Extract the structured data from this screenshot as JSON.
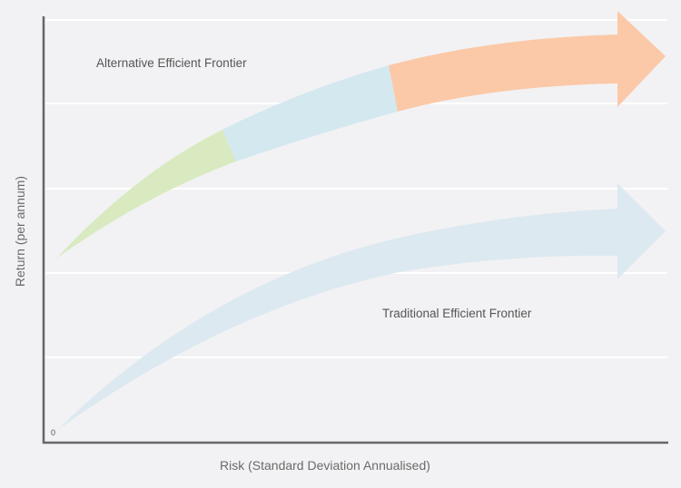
{
  "chart_data": {
    "type": "diagram",
    "xlabel": "Risk (Standard Deviation Annualised)",
    "ylabel": "Return (per annum)",
    "origin_label": "0",
    "grid": true,
    "series": [
      {
        "name": "Alternative Efficient Frontier",
        "segments": [
          "green",
          "blue",
          "orange"
        ]
      },
      {
        "name": "Traditional Efficient Frontier",
        "segments": [
          "light-blue"
        ]
      }
    ]
  },
  "colors": {
    "background": "#f2f2f4",
    "green": "#d9eac0",
    "blue": "#d3e8ef",
    "orange": "#fbc9a8",
    "traditional": "#dde9f0",
    "axis": "#666666",
    "grid": "#ffffff"
  }
}
